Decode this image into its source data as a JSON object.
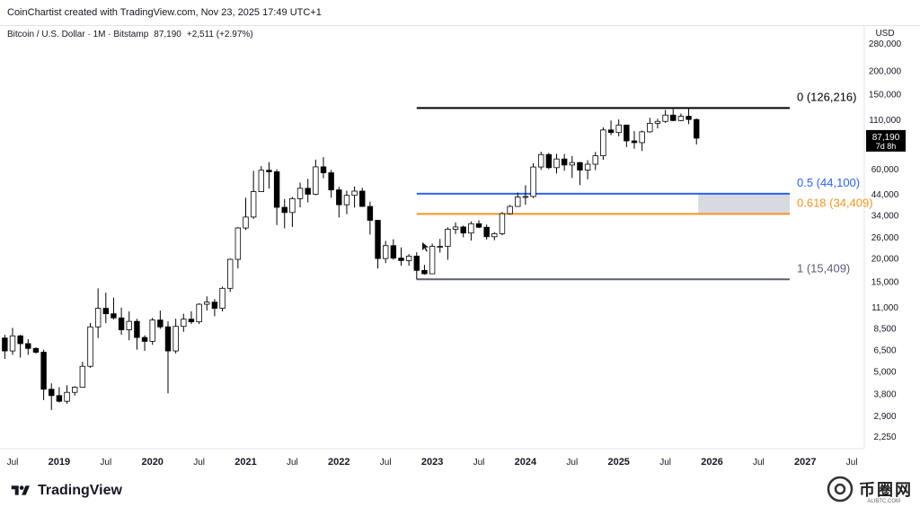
{
  "header": {
    "text": "CoinChartist created with TradingView.com, Nov 23, 2025 17:49 UTC+1"
  },
  "legend": {
    "symbol": "Bitcoin / U.S. Dollar · 1M · Bitstamp",
    "last": "87,190",
    "change": "+2,511 (+2.97%)"
  },
  "footer": {
    "brand": "TradingView",
    "watermark": "币圈网",
    "watermark_sub": "ALIBTC.COM"
  },
  "colors": {
    "up_candle_fill": "#ffffff",
    "down_candle_fill": "#000000",
    "candle_stroke": "#000000",
    "fib_0": "#000000",
    "fib_05": "#2962ff",
    "fib_0618": "#f7931a",
    "fib_1": "#5b5e7a",
    "zone": "#d1d4dc"
  },
  "chart_data": {
    "type": "candlestick",
    "title": "",
    "xlabel": "",
    "ylabel": "",
    "y_scale": "log",
    "ylim": [
      2000,
      320000
    ],
    "price_axis_label": "USD",
    "y_ticks": [
      "280,000",
      "200,000",
      "150,000",
      "110,000",
      "60,000",
      "44,000",
      "34,000",
      "26,000",
      "20,000",
      "15,000",
      "11,000",
      "8,500",
      "6,500",
      "5,000",
      "3,800",
      "2,900",
      "2,250"
    ],
    "x_ticks": [
      "Jul",
      "2019",
      "Jul",
      "2020",
      "Jul",
      "2021",
      "Jul",
      "2022",
      "Jul",
      "2023",
      "Jul",
      "2024",
      "Jul",
      "2025",
      "Jul",
      "2026",
      "Jul",
      "2027",
      "Jul"
    ],
    "x_range": [
      "2018-06",
      "2027-12"
    ],
    "candles": [
      [
        "2018-06",
        7500,
        7800,
        5800,
        6400
      ],
      [
        "2018-07",
        6400,
        8500,
        6100,
        7700
      ],
      [
        "2018-08",
        7700,
        7800,
        5900,
        7000
      ],
      [
        "2018-09",
        7000,
        7400,
        6100,
        6600
      ],
      [
        "2018-10",
        6600,
        6700,
        6200,
        6300
      ],
      [
        "2018-11",
        6300,
        6500,
        3500,
        4000
      ],
      [
        "2018-12",
        4000,
        4300,
        3100,
        3700
      ],
      [
        "2019-01",
        3700,
        4100,
        3400,
        3450
      ],
      [
        "2019-02",
        3450,
        4200,
        3350,
        3850
      ],
      [
        "2019-03",
        3850,
        4150,
        3700,
        4100
      ],
      [
        "2019-04",
        4100,
        5600,
        4100,
        5300
      ],
      [
        "2019-05",
        5300,
        9000,
        5200,
        8600
      ],
      [
        "2019-06",
        8600,
        13800,
        7500,
        10800
      ],
      [
        "2019-07",
        10800,
        13100,
        9000,
        10100
      ],
      [
        "2019-08",
        10100,
        12300,
        9400,
        9600
      ],
      [
        "2019-09",
        9600,
        10900,
        7800,
        8300
      ],
      [
        "2019-10",
        8300,
        10400,
        7300,
        9200
      ],
      [
        "2019-11",
        9200,
        9500,
        6500,
        7550
      ],
      [
        "2019-12",
        7550,
        7750,
        6400,
        7200
      ],
      [
        "2020-01",
        7200,
        9600,
        6900,
        9350
      ],
      [
        "2020-02",
        9350,
        10500,
        8400,
        8600
      ],
      [
        "2020-03",
        8600,
        9200,
        3800,
        6400
      ],
      [
        "2020-04",
        6400,
        9500,
        6200,
        8650
      ],
      [
        "2020-05",
        8650,
        10100,
        8100,
        9450
      ],
      [
        "2020-06",
        9450,
        10400,
        8900,
        9150
      ],
      [
        "2020-07",
        9150,
        11500,
        8900,
        11350
      ],
      [
        "2020-08",
        11350,
        12500,
        10500,
        11650
      ],
      [
        "2020-09",
        11650,
        12100,
        9800,
        10800
      ],
      [
        "2020-10",
        10800,
        14100,
        10400,
        13800
      ],
      [
        "2020-11",
        13800,
        19900,
        13200,
        19700
      ],
      [
        "2020-12",
        19700,
        29300,
        17600,
        28950
      ],
      [
        "2021-01",
        28950,
        41950,
        28200,
        33100
      ],
      [
        "2021-02",
        33100,
        58400,
        32300,
        45200
      ],
      [
        "2021-03",
        45200,
        61800,
        45000,
        58800
      ],
      [
        "2021-04",
        58800,
        64900,
        47000,
        57700
      ],
      [
        "2021-05",
        57700,
        59500,
        30000,
        37300
      ],
      [
        "2021-06",
        37300,
        41300,
        28800,
        35000
      ],
      [
        "2021-07",
        35000,
        42400,
        29300,
        41500
      ],
      [
        "2021-08",
        41500,
        50500,
        37300,
        47100
      ],
      [
        "2021-09",
        47100,
        52900,
        39600,
        43800
      ],
      [
        "2021-10",
        43800,
        67000,
        43300,
        61300
      ],
      [
        "2021-11",
        61300,
        69000,
        53300,
        57000
      ],
      [
        "2021-12",
        57000,
        59100,
        42000,
        46200
      ],
      [
        "2022-01",
        46200,
        47900,
        32900,
        38500
      ],
      [
        "2022-02",
        38500,
        45800,
        34300,
        43200
      ],
      [
        "2022-03",
        43200,
        48200,
        37200,
        45500
      ],
      [
        "2022-04",
        45500,
        47400,
        37600,
        37700
      ],
      [
        "2022-05",
        37700,
        40000,
        26700,
        31800
      ],
      [
        "2022-06",
        31800,
        31900,
        17600,
        19900
      ],
      [
        "2022-07",
        19900,
        24700,
        18800,
        23300
      ],
      [
        "2022-08",
        23300,
        25200,
        19600,
        20000
      ],
      [
        "2022-09",
        20000,
        22800,
        18200,
        19400
      ],
      [
        "2022-10",
        19400,
        21000,
        18200,
        20500
      ],
      [
        "2022-11",
        20500,
        21500,
        15400,
        17200
      ],
      [
        "2022-12",
        17200,
        18400,
        16300,
        16500
      ],
      [
        "2023-01",
        16500,
        23900,
        16500,
        23100
      ],
      [
        "2023-02",
        23100,
        25300,
        21400,
        23100
      ],
      [
        "2023-03",
        23100,
        29200,
        19600,
        28500
      ],
      [
        "2023-04",
        28500,
        31000,
        26900,
        29300
      ],
      [
        "2023-05",
        29300,
        29800,
        25800,
        27200
      ],
      [
        "2023-06",
        27200,
        31400,
        24800,
        30500
      ],
      [
        "2023-07",
        30500,
        31800,
        28900,
        29200
      ],
      [
        "2023-08",
        29200,
        30200,
        25100,
        26000
      ],
      [
        "2023-09",
        26000,
        27500,
        24900,
        27000
      ],
      [
        "2023-10",
        27000,
        35200,
        26500,
        34500
      ],
      [
        "2023-11",
        34500,
        38400,
        34100,
        37700
      ],
      [
        "2023-12",
        37700,
        44700,
        37600,
        42300
      ],
      [
        "2024-01",
        42300,
        48900,
        38500,
        42600
      ],
      [
        "2024-02",
        42600,
        64000,
        41800,
        61200
      ],
      [
        "2024-03",
        61200,
        73800,
        59000,
        71300
      ],
      [
        "2024-04",
        71300,
        72700,
        59600,
        60700
      ],
      [
        "2024-05",
        60700,
        71900,
        56500,
        67500
      ],
      [
        "2024-06",
        67500,
        71900,
        58400,
        62700
      ],
      [
        "2024-07",
        62700,
        70000,
        53500,
        64600
      ],
      [
        "2024-08",
        64600,
        65100,
        49000,
        58900
      ],
      [
        "2024-09",
        58900,
        66500,
        52600,
        63300
      ],
      [
        "2024-10",
        63300,
        73600,
        58900,
        70200
      ],
      [
        "2024-11",
        70200,
        99600,
        66800,
        96400
      ],
      [
        "2024-12",
        96400,
        108300,
        90500,
        93400
      ],
      [
        "2025-01",
        93400,
        109600,
        89200,
        102400
      ],
      [
        "2025-02",
        102400,
        102500,
        78200,
        84300
      ],
      [
        "2025-03",
        84300,
        95000,
        76600,
        82500
      ],
      [
        "2025-04",
        82500,
        95700,
        74400,
        94200
      ],
      [
        "2025-05",
        94200,
        111900,
        93300,
        104600
      ],
      [
        "2025-06",
        104600,
        110600,
        98200,
        107100
      ],
      [
        "2025-07",
        107100,
        123200,
        105100,
        115700
      ],
      [
        "2025-08",
        115700,
        124500,
        107300,
        108200
      ],
      [
        "2025-09",
        108200,
        117900,
        107300,
        114000
      ],
      [
        "2025-10",
        114000,
        126216,
        103500,
        109600
      ],
      [
        "2025-11",
        109600,
        111000,
        80600,
        87190
      ]
    ],
    "last_price": {
      "value": 87190,
      "label": "87,190",
      "countdown": "7d 8h"
    },
    "fib_levels": [
      {
        "label": "0 (126,216)",
        "value": 126216,
        "color": "#000000"
      },
      {
        "label": "0.5 (44,100)",
        "value": 44100,
        "color": "#2962ff"
      },
      {
        "label": "0.618 (34,409)",
        "value": 34409,
        "color": "#f7931a"
      },
      {
        "label": "1 (15,409)",
        "value": 15409,
        "color": "#5b5e7a"
      }
    ],
    "fib_start": "2022-11",
    "fib_end": "2026-11",
    "target_zone": {
      "from": "2025-11",
      "to": "2026-11",
      "low": 34409,
      "high": 44100
    }
  }
}
